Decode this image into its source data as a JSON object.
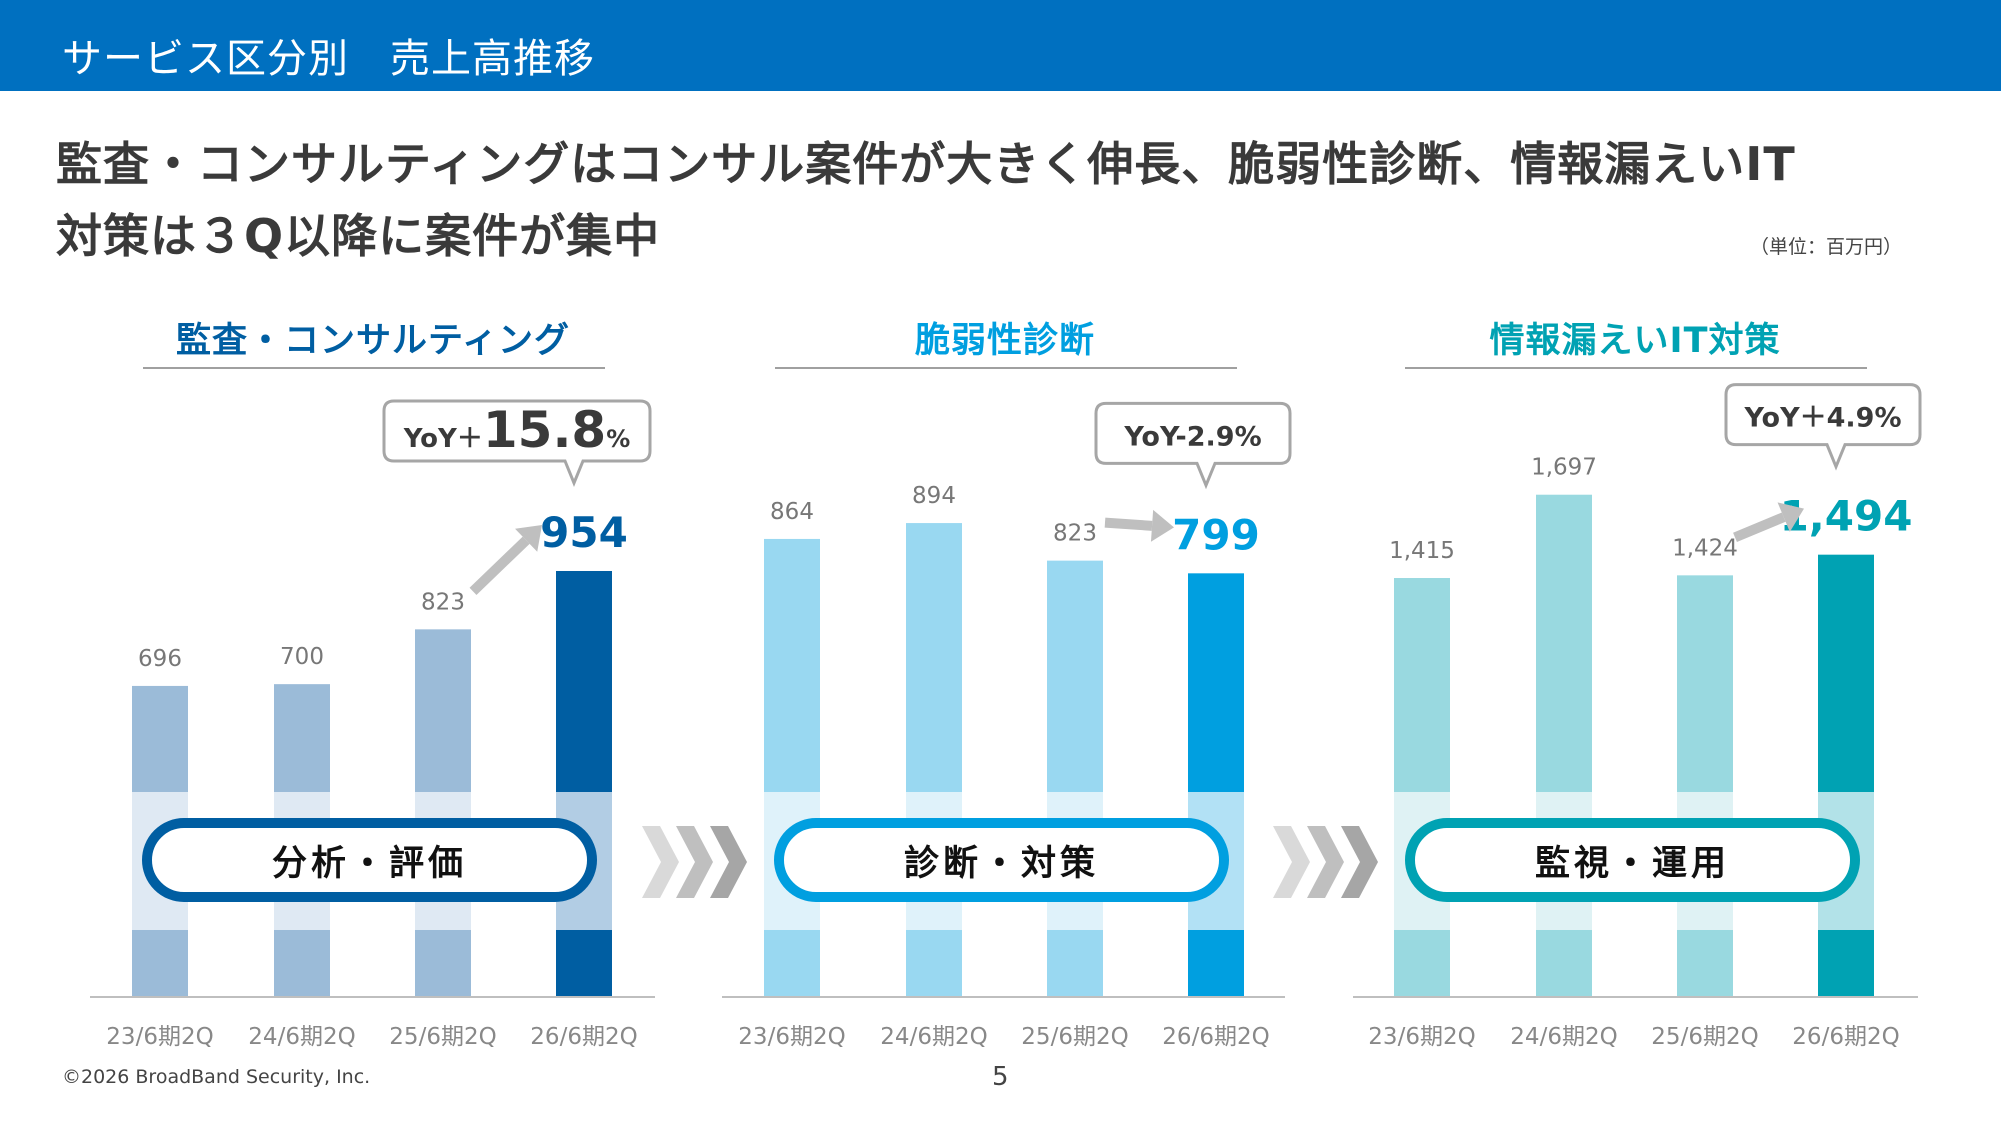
{
  "header": {
    "title": "サービス区分別　売上高推移"
  },
  "headline": {
    "line1": "監査・コンサルティングはコンサル案件が大きく伸長、脆弱性診断、情報漏えいIT",
    "line2": "対策は３Q以降に案件が集中"
  },
  "unit_note": "（単位：百万円）",
  "stages": [
    {
      "label": "分析・評価"
    },
    {
      "label": "診断・対策"
    },
    {
      "label": "監視・運用"
    }
  ],
  "chevron_icon": "triple-chevron-right",
  "footer": {
    "copyright": "©2026 BroadBand Security, Inc.",
    "page": "5"
  },
  "colors": {
    "header_bar": "#0070c0",
    "panel1_accent": "#005ea2",
    "panel1_light": "#9bbbd8",
    "panel2_accent": "#009fe0",
    "panel2_light": "#99d8f1",
    "panel3_accent": "#00a2b3",
    "panel3_light": "#99d9e0",
    "arrow": "#bfbfbf"
  },
  "chart_data": [
    {
      "type": "bar",
      "title": "監査・コンサルティング",
      "categories": [
        "23/6期2Q",
        "24/6期2Q",
        "25/6期2Q",
        "26/6期2Q"
      ],
      "values": [
        696,
        700,
        823,
        954
      ],
      "value_labels": [
        "696",
        "700",
        "823",
        "954"
      ],
      "highlight_index": 3,
      "yoy": {
        "prefix": "YoY＋",
        "value": "15.8",
        "suffix": "%"
      },
      "unit": "百万円",
      "ylabel": "",
      "xlabel": "",
      "grid": false,
      "legend": "none"
    },
    {
      "type": "bar",
      "title": "脆弱性診断",
      "categories": [
        "23/6期2Q",
        "24/6期2Q",
        "25/6期2Q",
        "26/6期2Q"
      ],
      "values": [
        864,
        894,
        823,
        799
      ],
      "value_labels": [
        "864",
        "894",
        "823",
        "799"
      ],
      "highlight_index": 3,
      "yoy": {
        "prefix": "YoY",
        "value": "-2.9",
        "suffix": "%"
      },
      "unit": "百万円",
      "ylabel": "",
      "xlabel": "",
      "grid": false,
      "legend": "none"
    },
    {
      "type": "bar",
      "title": "情報漏えいIT対策",
      "categories": [
        "23/6期2Q",
        "24/6期2Q",
        "25/6期2Q",
        "26/6期2Q"
      ],
      "values": [
        1415,
        1697,
        1424,
        1494
      ],
      "value_labels": [
        "1,415",
        "1,697",
        "1,424",
        "1,494"
      ],
      "highlight_index": 3,
      "yoy": {
        "prefix": "YoY＋",
        "value": "4.9",
        "suffix": "%"
      },
      "unit": "百万円",
      "ylabel": "",
      "xlabel": "",
      "grid": false,
      "legend": "none"
    }
  ]
}
